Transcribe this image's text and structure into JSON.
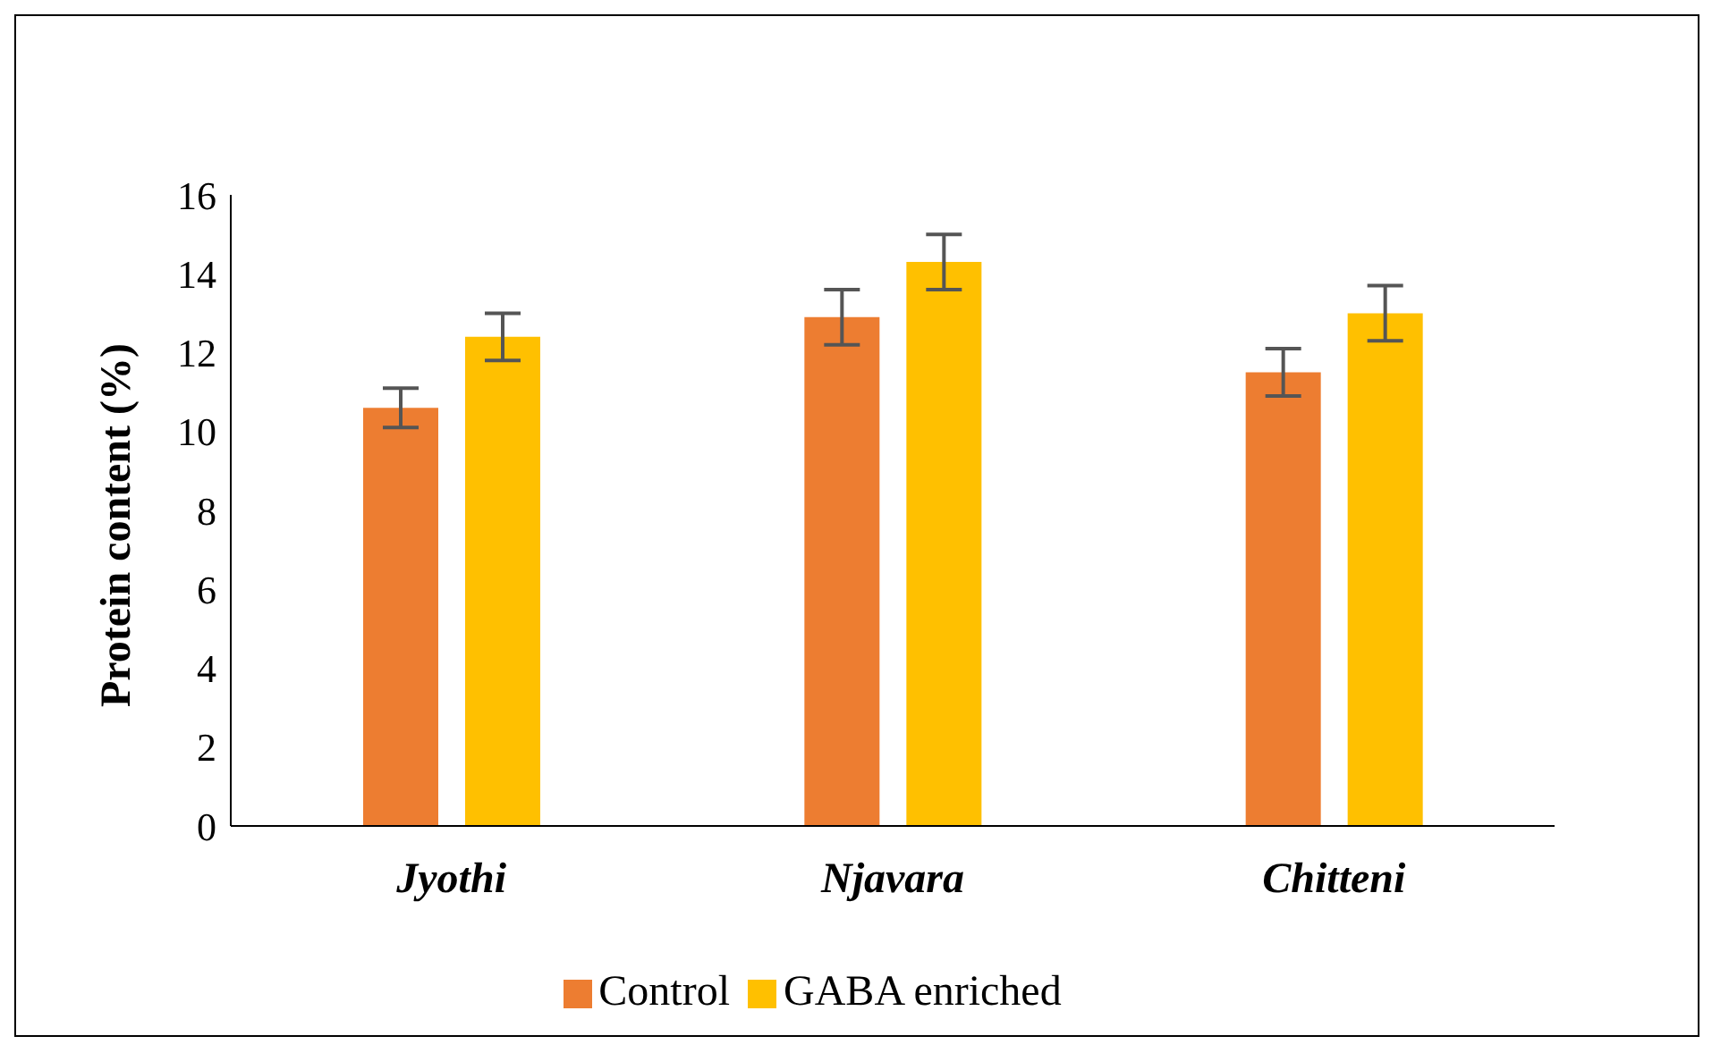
{
  "chart_data": {
    "type": "bar",
    "ylabel": "Protein content (%)",
    "categories": [
      "Jyothi",
      "Njavara",
      "Chitteni"
    ],
    "series": [
      {
        "name": "Control",
        "color": "#ed7d31",
        "values": [
          10.6,
          12.9,
          11.5
        ],
        "errors": [
          0.5,
          0.7,
          0.6
        ]
      },
      {
        "name": "GABA enriched",
        "color": "#ffc000",
        "values": [
          12.4,
          14.3,
          13.0
        ],
        "errors": [
          0.6,
          0.7,
          0.7
        ]
      }
    ],
    "ylim": [
      0,
      16
    ],
    "yticks": [
      0,
      2,
      4,
      6,
      8,
      10,
      12,
      14,
      16
    ],
    "grid": false,
    "legend": "bottom"
  }
}
